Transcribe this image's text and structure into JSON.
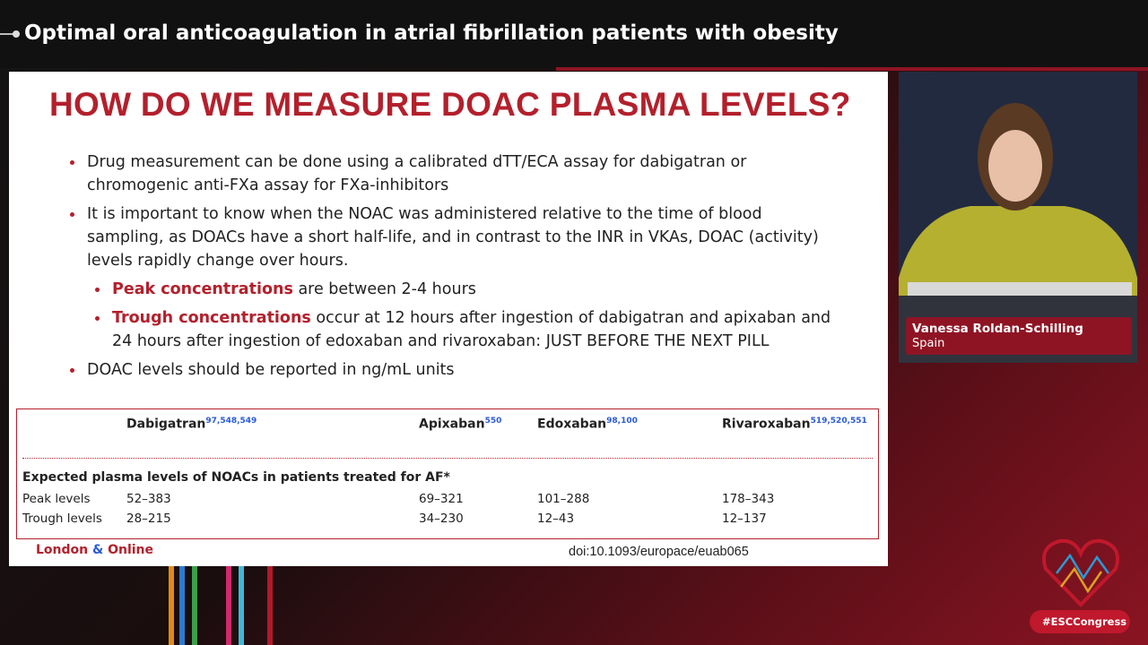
{
  "header": {
    "title": "Optimal oral anticoagulation in atrial fibrillation patients with obesity"
  },
  "slide": {
    "title": "HOW DO WE MEASURE DOAC PLASMA LEVELS?",
    "bullets": [
      {
        "text": "Drug measurement can be done using a calibrated dTT/ECA assay for dabigatran or chromogenic anti-FXa assay for FXa-inhibitors"
      },
      {
        "text": "It is important to know when the NOAC was administered relative to the time of blood sampling, as DOACs have a short half-life, and in contrast to the INR in VKAs, DOAC (activity) levels rapidly change over hours."
      },
      {
        "highlight": "Peak concentrations",
        "text": "are between 2-4 hours"
      },
      {
        "highlight": "Trough concentrations",
        "text": "occur at 12 hours after ingestion of dabigatran and apixaban and 24 hours after ingestion of edoxaban and rivaroxaban: JUST BEFORE THE NEXT PILL"
      },
      {
        "text": "DOAC levels should be reported in ng/mL units"
      }
    ],
    "table": {
      "columns": [
        {
          "name": "Dabigatran",
          "refs": "97,548,549"
        },
        {
          "name": "Apixaban",
          "refs": "550"
        },
        {
          "name": "Edoxaban",
          "refs": "98,100"
        },
        {
          "name": "Rivaroxaban",
          "refs": "519,520,551"
        }
      ],
      "caption": "Expected plasma levels of NOACs in patients treated for AF*",
      "rows": [
        [
          "Peak levels",
          "52–383",
          "69–321",
          "101–288",
          "178–343"
        ],
        [
          "Trough levels",
          "28–215",
          "34–230",
          "12–43",
          "12–137"
        ]
      ]
    },
    "footer": {
      "location": [
        "London",
        "&",
        "Online"
      ],
      "doi": "doi:10.1093/europace/euab065"
    }
  },
  "speaker": {
    "name": "Vanessa Roldan-Schilling",
    "country": "Spain"
  },
  "hashtag": "#ESCCongress"
}
